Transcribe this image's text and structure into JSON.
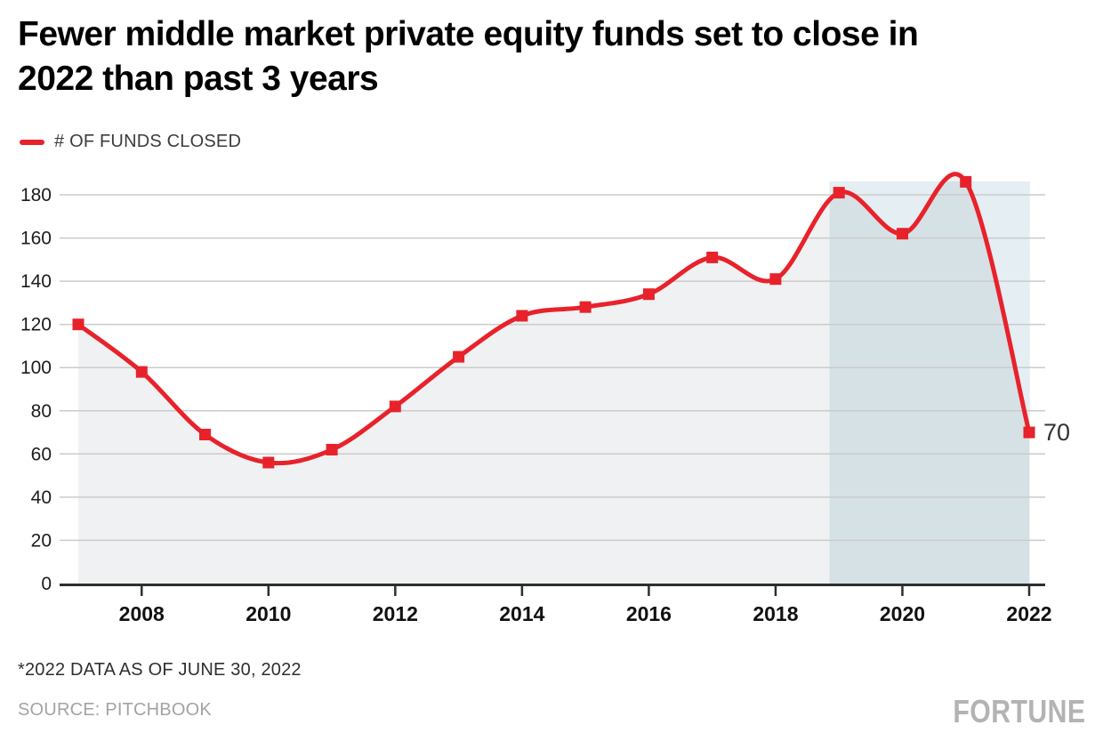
{
  "header": {
    "title_line1": "Fewer middle market private equity funds set to close in",
    "title_line2": "2022 than past 3 years"
  },
  "legend": {
    "label": "# OF FUNDS CLOSED",
    "swatch_color": "#e8222b"
  },
  "chart_data": {
    "type": "line",
    "title": "Fewer middle market private equity funds set to close in 2022 than past 3 years",
    "x": [
      2007,
      2008,
      2009,
      2010,
      2011,
      2012,
      2013,
      2014,
      2015,
      2016,
      2017,
      2018,
      2019,
      2020,
      2021,
      2022
    ],
    "series": [
      {
        "name": "# OF FUNDS CLOSED",
        "values": [
          120,
          98,
          69,
          56,
          62,
          82,
          105,
          124,
          128,
          134,
          151,
          141,
          181,
          162,
          186,
          70
        ],
        "color": "#e8222b",
        "marker": "square",
        "smooth": true
      }
    ],
    "xticks": [
      "2008",
      "2010",
      "2012",
      "2014",
      "2016",
      "2018",
      "2020",
      "2022"
    ],
    "yticks": [
      0,
      20,
      40,
      60,
      80,
      100,
      120,
      140,
      160,
      180
    ],
    "xlim": [
      2007,
      2022
    ],
    "ylim": [
      0,
      186.2
    ],
    "grid": true,
    "legend_position": "top-left",
    "area_fill": true,
    "highlight_band": {
      "x_start": 2018.85,
      "x_end": 2022.01,
      "color": "#e4eef3"
    },
    "last_point_label": "70"
  },
  "footer": {
    "footnote": "*2022 DATA AS OF JUNE 30, 2022",
    "source": "SOURCE: PITCHBOOK",
    "brand": "FORTUNE"
  },
  "colors": {
    "accent_red": "#e8222b",
    "band_blue": "#e4eef3",
    "area_overlay": "rgba(47,61,72,0.07)",
    "gridline": "#cbcbcb",
    "axis": "#2e2e2e",
    "tick_label": "#1c1c1c",
    "value_label": "#333333"
  }
}
